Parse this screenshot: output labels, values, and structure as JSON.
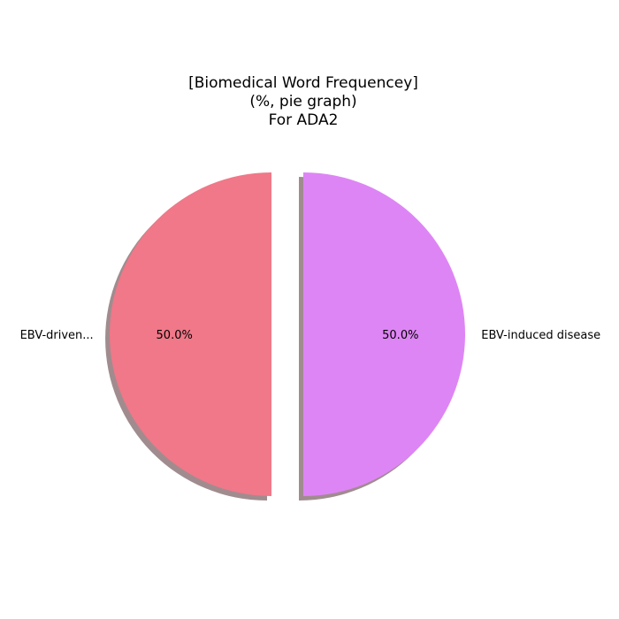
{
  "chart_data": {
    "type": "pie",
    "title_lines": [
      "[Biomedical Word Frequencey]",
      "(%, pie graph)",
      "For ADA2"
    ],
    "slices": [
      {
        "label": "EBV-driven...",
        "value": 50.0,
        "pct_label": "50.0%",
        "color": "#f07888"
      },
      {
        "label": "EBV-induced disease",
        "value": 50.0,
        "pct_label": "50.0%",
        "color": "#de85f5"
      }
    ],
    "shadow": true,
    "exploded": true,
    "shadow_color": "#a08c8f"
  }
}
